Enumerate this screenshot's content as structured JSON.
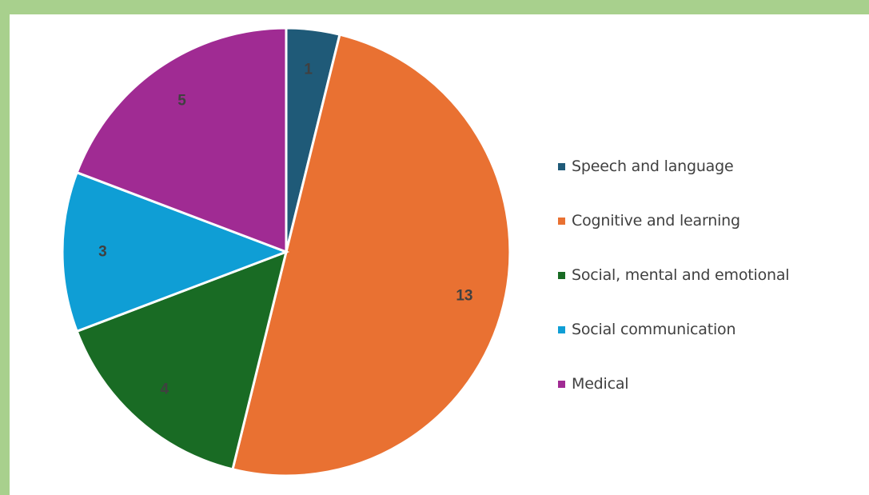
{
  "chart_data": {
    "type": "pie",
    "title": "",
    "categories": [
      "Speech and language",
      "Cognitive and learning",
      "Social, mental and emotional",
      "Social communication",
      "Medical"
    ],
    "values": [
      1,
      13,
      4,
      3,
      5
    ],
    "colors": [
      "#1f5a78",
      "#e97132",
      "#196b24",
      "#0f9ed5",
      "#a02b93"
    ],
    "data_labels": [
      "1",
      "13",
      "4",
      "3",
      "5"
    ],
    "legend_position": "right",
    "start_angle_deg": 0,
    "direction": "clockwise"
  }
}
